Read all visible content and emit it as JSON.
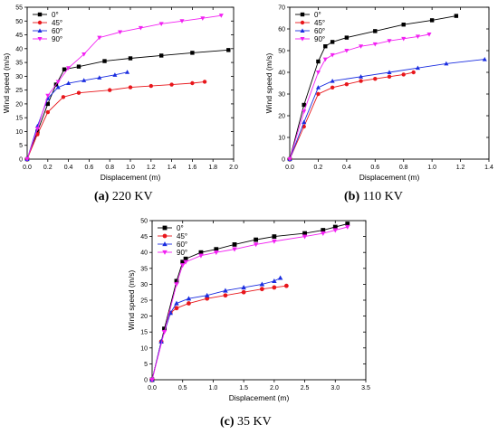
{
  "colors": {
    "s0": "#000000",
    "s45": "#e8161b",
    "s60": "#1a2de0",
    "s90": "#f221f2"
  },
  "chart_data": [
    {
      "type": "line",
      "caption": {
        "label": "(a)",
        "text": " 220 KV"
      },
      "xlabel": "Displacement (m)",
      "ylabel": "Wind speed (m/s)",
      "xlim": [
        0,
        2.0
      ],
      "ylim": [
        0,
        55
      ],
      "xticks": [
        "0.0",
        "0.2",
        "0.4",
        "0.6",
        "0.8",
        "1.0",
        "1.2",
        "1.4",
        "1.6",
        "1.8",
        "2.0"
      ],
      "yticks": [
        "0",
        "5",
        "10",
        "15",
        "20",
        "25",
        "30",
        "35",
        "40",
        "45",
        "50",
        "55"
      ],
      "legend": "top-left",
      "series": [
        {
          "name": "0°",
          "marker": "square",
          "x": [
            0,
            0.1,
            0.2,
            0.28,
            0.36,
            0.5,
            0.75,
            1.0,
            1.3,
            1.6,
            1.95
          ],
          "y": [
            0,
            10,
            20,
            27,
            32.5,
            33.5,
            35.5,
            36.5,
            37.5,
            38.5,
            39.5
          ]
        },
        {
          "name": "45°",
          "marker": "circle",
          "x": [
            0,
            0.1,
            0.2,
            0.35,
            0.5,
            0.8,
            1.0,
            1.2,
            1.4,
            1.6,
            1.72
          ],
          "y": [
            0,
            9,
            17,
            22.5,
            24,
            25,
            26,
            26.5,
            27,
            27.5,
            28
          ]
        },
        {
          "name": "60°",
          "marker": "triangle",
          "x": [
            0,
            0.1,
            0.2,
            0.3,
            0.4,
            0.55,
            0.7,
            0.85,
            0.97
          ],
          "y": [
            0,
            12,
            22,
            26,
            27.5,
            28.5,
            29.5,
            30.5,
            31.5
          ]
        },
        {
          "name": "90°",
          "marker": "triangle-down",
          "x": [
            0,
            0.1,
            0.2,
            0.3,
            0.4,
            0.55,
            0.7,
            0.9,
            1.1,
            1.3,
            1.5,
            1.7,
            1.88
          ],
          "y": [
            0,
            11,
            23,
            28,
            33,
            38,
            44,
            46,
            47.5,
            49,
            50,
            51,
            52
          ]
        }
      ]
    },
    {
      "type": "line",
      "caption": {
        "label": "(b)",
        "text": " 110 KV"
      },
      "xlabel": "Displacement (m)",
      "ylabel": "Wind speed (m/s)",
      "xlim": [
        0,
        1.4
      ],
      "ylim": [
        0,
        70
      ],
      "xticks": [
        "0.0",
        "0.2",
        "0.4",
        "0.6",
        "0.8",
        "1.0",
        "1.2",
        "1.4"
      ],
      "yticks": [
        "0",
        "10",
        "20",
        "30",
        "40",
        "50",
        "60",
        "70"
      ],
      "legend": "top-left",
      "series": [
        {
          "name": "0°",
          "marker": "square",
          "x": [
            0,
            0.1,
            0.2,
            0.25,
            0.3,
            0.4,
            0.6,
            0.8,
            1.0,
            1.17
          ],
          "y": [
            0,
            25,
            45,
            52,
            54,
            56,
            59,
            62,
            64,
            66
          ]
        },
        {
          "name": "45°",
          "marker": "circle",
          "x": [
            0,
            0.1,
            0.2,
            0.3,
            0.4,
            0.5,
            0.6,
            0.7,
            0.8,
            0.87
          ],
          "y": [
            0,
            15,
            30,
            33,
            34.5,
            36,
            37,
            38,
            39,
            40
          ]
        },
        {
          "name": "60°",
          "marker": "triangle",
          "x": [
            0,
            0.1,
            0.2,
            0.3,
            0.5,
            0.7,
            0.9,
            1.1,
            1.37
          ],
          "y": [
            0,
            17,
            33,
            36,
            38,
            40,
            42,
            44,
            46
          ]
        },
        {
          "name": "90°",
          "marker": "triangle-down",
          "x": [
            0,
            0.1,
            0.2,
            0.25,
            0.3,
            0.4,
            0.5,
            0.6,
            0.7,
            0.8,
            0.9,
            0.98
          ],
          "y": [
            0,
            22,
            40,
            46,
            48,
            50,
            52,
            53,
            54.5,
            55.5,
            56.5,
            57.5
          ]
        }
      ]
    },
    {
      "type": "line",
      "caption": {
        "label": "(c)",
        "text": " 35 KV"
      },
      "xlabel": "Displacement (m)",
      "ylabel": "Wind speed (m/s)",
      "xlim": [
        0,
        3.5
      ],
      "ylim": [
        0,
        50
      ],
      "xticks": [
        "0.0",
        "0.5",
        "1.0",
        "1.5",
        "2.0",
        "2.5",
        "3.0",
        "3.5"
      ],
      "yticks": [
        "0",
        "5",
        "10",
        "15",
        "20",
        "25",
        "30",
        "35",
        "40",
        "45",
        "50"
      ],
      "legend": "top-left",
      "series": [
        {
          "name": "0°",
          "marker": "square",
          "x": [
            0,
            0.2,
            0.4,
            0.5,
            0.55,
            0.8,
            1.05,
            1.35,
            1.7,
            2.0,
            2.5,
            2.8,
            3.0,
            3.2
          ],
          "y": [
            0,
            16,
            31,
            37,
            38,
            40,
            41,
            42.5,
            44,
            45,
            46,
            47,
            48,
            49
          ]
        },
        {
          "name": "45°",
          "marker": "circle",
          "x": [
            0,
            0.15,
            0.3,
            0.4,
            0.6,
            0.9,
            1.2,
            1.5,
            1.8,
            2.0,
            2.2
          ],
          "y": [
            0,
            12,
            21,
            22.5,
            24,
            25.5,
            26.5,
            27.5,
            28.5,
            29,
            29.5
          ]
        },
        {
          "name": "60°",
          "marker": "triangle",
          "x": [
            0,
            0.15,
            0.3,
            0.4,
            0.6,
            0.9,
            1.2,
            1.5,
            1.8,
            2.0,
            2.1
          ],
          "y": [
            0,
            12,
            21,
            24,
            25.5,
            26.5,
            28,
            29,
            30,
            31,
            32
          ]
        },
        {
          "name": "90°",
          "marker": "triangle-down",
          "x": [
            0,
            0.2,
            0.4,
            0.5,
            0.55,
            0.8,
            1.05,
            1.35,
            1.7,
            2.0,
            2.5,
            2.8,
            3.0,
            3.2
          ],
          "y": [
            0,
            15,
            30,
            36,
            37,
            39,
            40,
            41,
            42.5,
            43.5,
            45,
            46,
            47,
            48
          ]
        }
      ]
    }
  ]
}
